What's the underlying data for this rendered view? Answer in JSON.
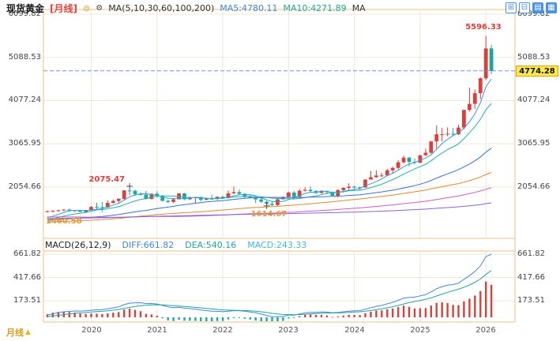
{
  "header": {
    "symbol": "现货黄金",
    "period_tag": "[月线]",
    "link_icon": "⊜",
    "settings_icon": "⚙",
    "ma_group_label": "MA(5,10,30,60,100,200)",
    "ma5_label": "MA5:4780.11",
    "ma10_label": "MA10:4271.89",
    "ma_overflow_label": "MA",
    "toolbar_icons": [
      {
        "name": "add-panel",
        "glyph": "⊞",
        "style": "outline"
      },
      {
        "name": "grid-layout",
        "glyph": "⊟",
        "style": "outline"
      },
      {
        "name": "chart-type",
        "glyph": "▤",
        "style": "filled"
      },
      {
        "name": "multi-view",
        "glyph": "▦",
        "style": "filled"
      }
    ]
  },
  "macd_header": {
    "label": "MACD(26,12,9)",
    "diff_label": "DIFF:661.82",
    "dea_label": "DEA:540.16",
    "macd_label": "MACD:243.33"
  },
  "axes": {
    "price_ticks": [
      "6099.82",
      "5088.53",
      "4077.24",
      "3065.95",
      "2054.66"
    ],
    "macd_ticks": [
      "661.82",
      "417.66",
      "173.51"
    ],
    "year_labels": [
      "2020",
      "2021",
      "2022",
      "2023",
      "2024",
      "2025",
      "2026"
    ]
  },
  "price_marker": {
    "value": "4774.28"
  },
  "footer": {
    "period_label": "月线",
    "arrow": "▲"
  },
  "annotations": [
    {
      "id": "range-high",
      "label": "5596.33",
      "price": 5596.33,
      "index": 80,
      "placement": "above",
      "color": "#e23b3b",
      "marker": false
    },
    {
      "id": "peak-2020",
      "label": "2075.47",
      "price": 2075.47,
      "index": 15,
      "placement": "left",
      "color": "#e23b3b",
      "marker": true
    },
    {
      "id": "low-2022",
      "label": "1614.67",
      "price": 1614.67,
      "index": 40,
      "placement": "below",
      "color": "#e5972f",
      "marker": true
    },
    {
      "id": "range-low",
      "label": "1460.58",
      "price": 1460.58,
      "index": 0,
      "placement": "below-right",
      "color": "#e5972f",
      "marker": false
    }
  ],
  "chart_data": {
    "type": "candlestick",
    "title": "现货黄金 月线",
    "interval": "monthly",
    "start_month": "2019-05",
    "current_price": 4774.28,
    "price_axis_ticks": [
      6099.82,
      5088.53,
      4077.24,
      3065.95,
      2054.66
    ],
    "macd_axis_ticks": [
      661.82,
      417.66,
      173.51
    ],
    "year_tick_indices": [
      8,
      20,
      32,
      44,
      56,
      68,
      80
    ],
    "ma_settings": [
      {
        "n": 5,
        "color": "#2e9de2"
      },
      {
        "n": 10,
        "color": "#1fb3a7"
      },
      {
        "n": 30,
        "color": "#3a6fd8"
      },
      {
        "n": 60,
        "color": "#e0872e"
      },
      {
        "n": 100,
        "color": "#cf5bbd"
      },
      {
        "n": 200,
        "color": "#8666d8"
      }
    ],
    "macd_settings": {
      "fast": 12,
      "slow": 26,
      "signal": 9,
      "diff": 661.82,
      "dea": 540.16,
      "macd": 243.33
    },
    "colors": {
      "up": "#d9413d",
      "down": "#1fa79c",
      "diff_line": "#3f87e0",
      "dea_line": "#1fa79c",
      "hist_pos": "#d9413d",
      "hist_neg": "#1fa79c",
      "grid": "#f0e7d7",
      "frame": "#e9c286",
      "dashed": "#6b9bd2"
    },
    "candles": [
      [
        1484,
        1506,
        1460.58,
        1490
      ],
      [
        1490,
        1512,
        1466,
        1500
      ],
      [
        1500,
        1524,
        1478,
        1512
      ],
      [
        1512,
        1535,
        1494,
        1526
      ],
      [
        1526,
        1552,
        1482,
        1495
      ],
      [
        1495,
        1520,
        1475,
        1513
      ],
      [
        1513,
        1518,
        1468,
        1472
      ],
      [
        1472,
        1525,
        1466,
        1517
      ],
      [
        1517,
        1611,
        1510,
        1589
      ],
      [
        1589,
        1689,
        1547,
        1586
      ],
      [
        1586,
        1704,
        1471,
        1577
      ],
      [
        1577,
        1748,
        1568,
        1686
      ],
      [
        1686,
        1765,
        1670,
        1730
      ],
      [
        1730,
        1789,
        1671,
        1781
      ],
      [
        1781,
        1981,
        1757,
        1976
      ],
      [
        1976,
        2075.47,
        1863,
        1968
      ],
      [
        1968,
        1993,
        1849,
        1886
      ],
      [
        1886,
        1933,
        1860,
        1879
      ],
      [
        1879,
        1965,
        1765,
        1777
      ],
      [
        1777,
        1906,
        1764,
        1898
      ],
      [
        1898,
        1959,
        1803,
        1848
      ],
      [
        1848,
        1871,
        1717,
        1734
      ],
      [
        1734,
        1755,
        1677,
        1708
      ],
      [
        1708,
        1798,
        1678,
        1769
      ],
      [
        1769,
        1912,
        1765,
        1907
      ],
      [
        1907,
        1916,
        1750,
        1770
      ],
      [
        1770,
        1834,
        1752,
        1814
      ],
      [
        1814,
        1823,
        1681,
        1814
      ],
      [
        1814,
        1834,
        1721,
        1757
      ],
      [
        1757,
        1813,
        1746,
        1783
      ],
      [
        1783,
        1877,
        1759,
        1775
      ],
      [
        1775,
        1830,
        1753,
        1829
      ],
      [
        1829,
        1853,
        1780,
        1797
      ],
      [
        1797,
        1974,
        1788,
        1909
      ],
      [
        1909,
        2070,
        1890,
        1937
      ],
      [
        1937,
        1998,
        1872,
        1897
      ],
      [
        1897,
        1910,
        1787,
        1837
      ],
      [
        1837,
        1879,
        1805,
        1807
      ],
      [
        1807,
        1814,
        1681,
        1766
      ],
      [
        1766,
        1808,
        1688,
        1711
      ],
      [
        1711,
        1735,
        1614.67,
        1661
      ],
      [
        1661,
        1730,
        1617,
        1634
      ],
      [
        1634,
        1787,
        1616,
        1769
      ],
      [
        1769,
        1833,
        1765,
        1824
      ],
      [
        1824,
        1949,
        1823,
        1928
      ],
      [
        1928,
        1960,
        1804,
        1827
      ],
      [
        1827,
        2010,
        1809,
        1969
      ],
      [
        1969,
        2049,
        1949,
        1990
      ],
      [
        1990,
        2072,
        1932,
        1963
      ],
      [
        1963,
        1983,
        1893,
        1919
      ],
      [
        1919,
        1987,
        1902,
        1965
      ],
      [
        1965,
        1972,
        1885,
        1940
      ],
      [
        1940,
        1953,
        1847,
        1849
      ],
      [
        1849,
        2009,
        1810,
        1984
      ],
      [
        1984,
        2052,
        1931,
        2036
      ],
      [
        2036,
        2146,
        1973,
        2063
      ],
      [
        2063,
        2088,
        2001,
        2040
      ],
      [
        2040,
        2065,
        1984,
        2044
      ],
      [
        2044,
        2236,
        2039,
        2230
      ],
      [
        2230,
        2431,
        2228,
        2286
      ],
      [
        2286,
        2450,
        2277,
        2327
      ],
      [
        2327,
        2388,
        2287,
        2327
      ],
      [
        2327,
        2483,
        2319,
        2448
      ],
      [
        2448,
        2531,
        2364,
        2503
      ],
      [
        2503,
        2685,
        2471,
        2635
      ],
      [
        2635,
        2790,
        2603,
        2744
      ],
      [
        2744,
        2762,
        2536,
        2643
      ],
      [
        2643,
        2726,
        2583,
        2625
      ],
      [
        2625,
        2817,
        2614,
        2798
      ],
      [
        2798,
        2956,
        2780,
        2858
      ],
      [
        2858,
        3128,
        2832,
        3124
      ],
      [
        3124,
        3500,
        2956,
        3289
      ],
      [
        3289,
        3438,
        3120,
        3290
      ],
      [
        3290,
        3452,
        3245,
        3303
      ],
      [
        3303,
        3439,
        3248,
        3290
      ],
      [
        3290,
        3508,
        3268,
        3448
      ],
      [
        3448,
        3871,
        3403,
        3859
      ],
      [
        3859,
        4381,
        3823,
        4002
      ],
      [
        4002,
        4340,
        3886,
        4250
      ],
      [
        4250,
        4620,
        4110,
        4600
      ],
      [
        4600,
        5596.33,
        4560,
        5300
      ],
      [
        5300,
        5380,
        4700,
        4774.28
      ]
    ],
    "prehistory_closes": [
      978,
      927,
      939,
      953,
      1008,
      1040,
      1175,
      1097,
      1083,
      1118,
      1113,
      1179,
      1215,
      1244,
      1169,
      1246,
      1307,
      1359,
      1386,
      1420,
      1327,
      1411,
      1438,
      1556,
      1536,
      1500,
      1628,
      1826,
      1620,
      1722,
      1746,
      1564,
      1737,
      1770,
      1668,
      1664,
      1560,
      1604,
      1614,
      1691,
      1772,
      1719,
      1715,
      1675,
      1662,
      1580,
      1597,
      1469,
      1387,
      1192,
      1323,
      1395,
      1327,
      1324,
      1253,
      1205,
      1244,
      1326,
      1284,
      1288,
      1249,
      1327,
      1282,
      1287,
      1208,
      1173,
      1182,
      1184,
      1283,
      1213,
      1183,
      1184,
      1190,
      1172,
      1095,
      1135,
      1114,
      1142,
      1064,
      1061,
      1118,
      1234,
      1232,
      1293,
      1215,
      1322,
      1351,
      1309,
      1316,
      1277,
      1173,
      1152,
      1211,
      1248,
      1249,
      1268,
      1269,
      1241,
      1269,
      1321,
      1280,
      1271,
      1275,
      1303,
      1345,
      1318,
      1325,
      1315,
      1298,
      1253,
      1224,
      1201,
      1192,
      1215,
      1222,
      1282,
      1321,
      1313,
      1292,
      1283
    ]
  }
}
